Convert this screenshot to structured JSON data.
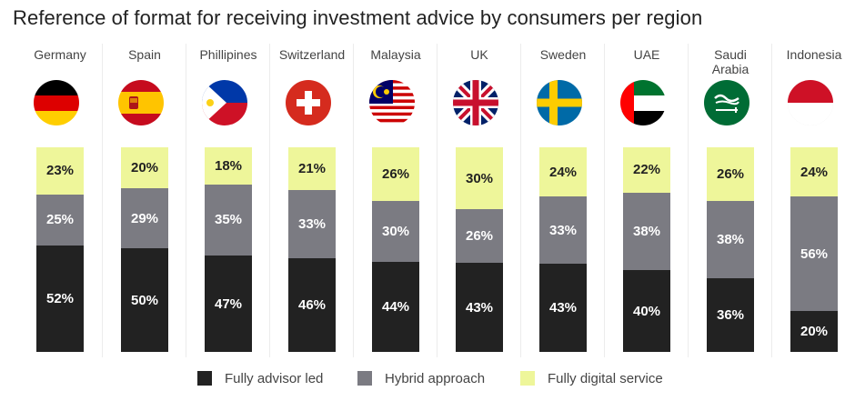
{
  "chart_data": {
    "type": "bar",
    "stacked": true,
    "title": "Reference of format for receiving investment advice by consumers per region",
    "categories": [
      "Germany",
      "Spain",
      "Phillipines",
      "Switzerland",
      "Malaysia",
      "UK",
      "Sweden",
      "UAE",
      "Saudi\nArabia",
      "Indonesia"
    ],
    "flags": [
      "germany-flag",
      "spain-flag",
      "philippines-flag",
      "switzerland-flag",
      "malaysia-flag",
      "uk-flag",
      "sweden-flag",
      "uae-flag",
      "saudi-arabia-flag",
      "indonesia-flag"
    ],
    "series": [
      {
        "key": "advisor",
        "name": "Fully advisor led",
        "color": "#222222",
        "values": [
          52,
          50,
          47,
          46,
          44,
          43,
          43,
          40,
          36,
          20
        ]
      },
      {
        "key": "hybrid",
        "name": "Hybrid approach",
        "color": "#7b7b82",
        "values": [
          25,
          29,
          35,
          33,
          30,
          26,
          33,
          38,
          38,
          56
        ]
      },
      {
        "key": "digital",
        "name": "Fully digital service",
        "color": "#eef69a",
        "values": [
          23,
          20,
          18,
          21,
          26,
          30,
          24,
          22,
          26,
          24
        ]
      }
    ],
    "value_suffix": "%",
    "xlabel": "",
    "ylabel": "",
    "legend_position": "bottom"
  }
}
